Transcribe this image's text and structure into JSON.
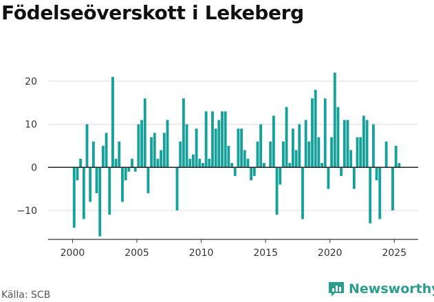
{
  "title": "Födelseöverskott i Lekeberg",
  "source": "Källa: SCB",
  "brand": {
    "name": "Newsworthy",
    "color": "#2a9d8f",
    "icon": "newsworthy-logo-icon"
  },
  "colors": {
    "bar": "#16a09a",
    "grid": "#dddddd",
    "zero": "#222222",
    "axis": "#333333"
  },
  "chart_data": {
    "type": "bar",
    "title": "Födelseöverskott i Lekeberg",
    "xlabel": "",
    "ylabel": "",
    "x_ticks": [
      "2000",
      "2005",
      "2010",
      "2015",
      "2020",
      "2025"
    ],
    "y_ticks": [
      20,
      10,
      0,
      -10
    ],
    "y_tick_labels": [
      "20",
      "10",
      "0",
      "−10"
    ],
    "ylim": [
      -18,
      24
    ],
    "xlim": [
      1998.8,
      2026.8
    ],
    "grid": true,
    "series": [
      {
        "frequency": "quarterly",
        "start": "2000-Q1",
        "values": [
          -14,
          -3,
          2,
          -12,
          10,
          -8,
          6,
          -6,
          -16,
          5,
          8,
          -11,
          21,
          2,
          6,
          -8,
          -3,
          -1,
          2,
          -1,
          10,
          11,
          16,
          -6,
          7,
          8,
          2,
          4,
          8,
          11,
          0,
          0,
          -10,
          6,
          16,
          10,
          2,
          3,
          9,
          2,
          1,
          13,
          2,
          13,
          9,
          11,
          13,
          13,
          5,
          1,
          -2,
          9,
          9,
          4,
          2,
          -3,
          -2,
          6,
          10,
          1,
          0,
          6,
          12,
          -11,
          -4,
          6,
          14,
          1,
          9,
          4,
          10,
          -12,
          11,
          6,
          16,
          18,
          7,
          1,
          16,
          -5,
          7,
          22,
          14,
          -2,
          11,
          11,
          4,
          -5,
          7,
          7,
          12,
          11,
          -13,
          10,
          -3,
          -12,
          0,
          6,
          0,
          -10,
          5,
          1
        ]
      }
    ]
  }
}
